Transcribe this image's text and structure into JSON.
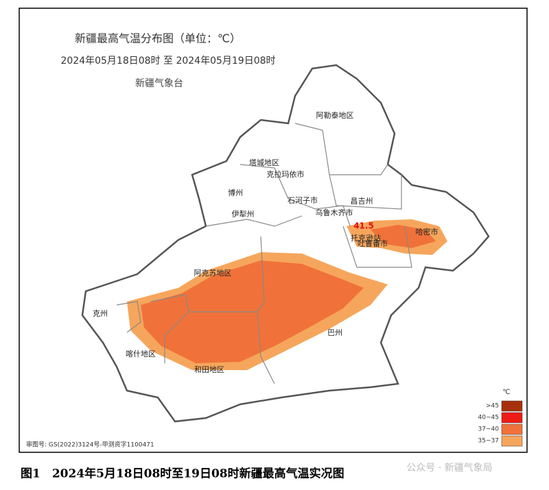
{
  "header": {
    "title": "新疆最高气温分布图（单位：℃）",
    "period": "2024年05月18日08时 至 2024年05月19日08时",
    "issuer": "新疆气象台"
  },
  "regions": [
    "阿勒泰地区",
    "塔城地区",
    "克拉玛依市",
    "博州",
    "伊犁州",
    "石河子市",
    "乌鲁木齐市",
    "昌吉州",
    "哈密市",
    "托克逊站",
    "吐鲁番市",
    "阿克苏地区",
    "克州",
    "喀什地区",
    "和田地区",
    "巴州"
  ],
  "max_station_value": "41.5",
  "legend": {
    "unit": "℃",
    "items": [
      {
        "label": ">45",
        "color": "#a8300c"
      },
      {
        "label": "40~45",
        "color": "#ee1c16"
      },
      {
        "label": "37~40",
        "color": "#f0723a"
      },
      {
        "label": "35~37",
        "color": "#f6a65c"
      }
    ]
  },
  "approval": "审图号: GS(2022)3124号-甲测资字1100471",
  "caption": "图1　2024年5月18日08时至19日08时新疆最高气温实况图",
  "watermark": "公众号 · 新疆气象局"
}
